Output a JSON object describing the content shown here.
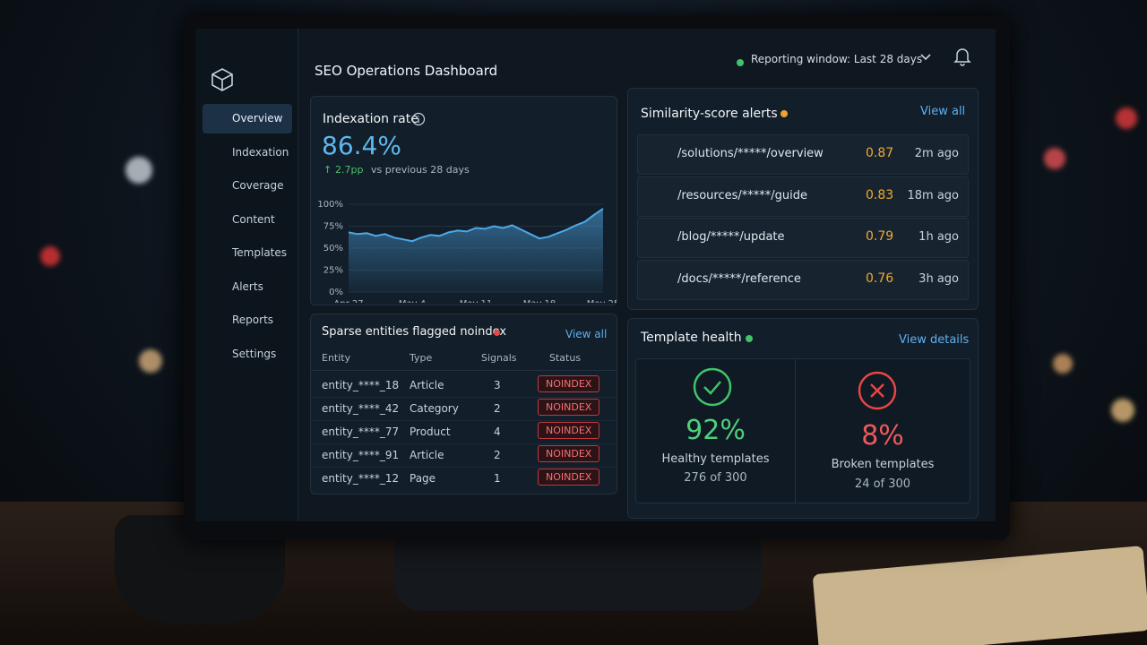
{
  "header": {
    "title": "SEO Operations Dashboard",
    "reporting_window": "Reporting window: Last 28 days"
  },
  "sidebar": {
    "items": [
      "Overview",
      "Indexation",
      "Coverage",
      "Content",
      "Templates",
      "Alerts",
      "Reports",
      "Settings"
    ]
  },
  "indexation": {
    "title": "Indexation rate",
    "value": "86.4%",
    "change": "2.7pp",
    "comparison": "vs previous 28 days"
  },
  "chart_data": {
    "type": "line",
    "categories": [
      "Apr 27",
      null,
      null,
      null,
      null,
      null,
      null,
      "May 4",
      null,
      null,
      null,
      null,
      null,
      null,
      "May 11",
      null,
      null,
      null,
      null,
      null,
      null,
      "May 18",
      null,
      null,
      null,
      null,
      null,
      null,
      "May 25"
    ],
    "values": [
      68,
      66,
      67,
      64,
      66,
      62,
      60,
      58,
      62,
      65,
      64,
      68,
      70,
      69,
      73,
      72,
      75,
      73,
      76,
      71,
      66,
      61,
      63,
      67,
      71,
      76,
      80,
      88,
      95
    ],
    "color": "#4ea8e8",
    "ylim": [
      0,
      100
    ],
    "yticks": [
      {
        "value": 0,
        "label": "0%"
      },
      {
        "value": 25,
        "label": "25%"
      },
      {
        "value": 50,
        "label": "50%"
      },
      {
        "value": 75,
        "label": "75%"
      },
      {
        "value": 100,
        "label": "100%"
      }
    ],
    "grid": true
  },
  "alerts": {
    "title": "Similarity-score alerts",
    "view_all": "View all",
    "items": [
      {
        "path": "/solutions/*****/overview",
        "score": 0.87,
        "time": "2m ago"
      },
      {
        "path": "/resources/*****/guide",
        "score": 0.83,
        "time": "18m ago"
      },
      {
        "path": "/blog/*****/update",
        "score": 0.79,
        "time": "1h ago"
      },
      {
        "path": "/docs/*****/reference",
        "score": 0.76,
        "time": "3h ago"
      }
    ]
  },
  "noindex": {
    "title": "Sparse entities flagged noindex",
    "view_all": "View all",
    "columns": [
      "Entity",
      "Type",
      "Signals",
      "Status"
    ],
    "rows": [
      [
        "entity_****_18",
        "Article",
        3,
        "NOINDEX"
      ],
      [
        "entity_****_42",
        "Category",
        2,
        "NOINDEX"
      ],
      [
        "entity_****_77",
        "Product",
        4,
        "NOINDEX"
      ],
      [
        "entity_****_91",
        "Article",
        2,
        "NOINDEX"
      ],
      [
        "entity_****_12",
        "Page",
        1,
        "NOINDEX"
      ]
    ]
  },
  "template_health": {
    "title": "Template health",
    "view_details": "View details",
    "healthy": {
      "value": "92%",
      "label": "Healthy templates",
      "count": "276 of 300"
    },
    "broken": {
      "value": "8%",
      "label": "Broken templates",
      "count": "24 of 300"
    }
  }
}
